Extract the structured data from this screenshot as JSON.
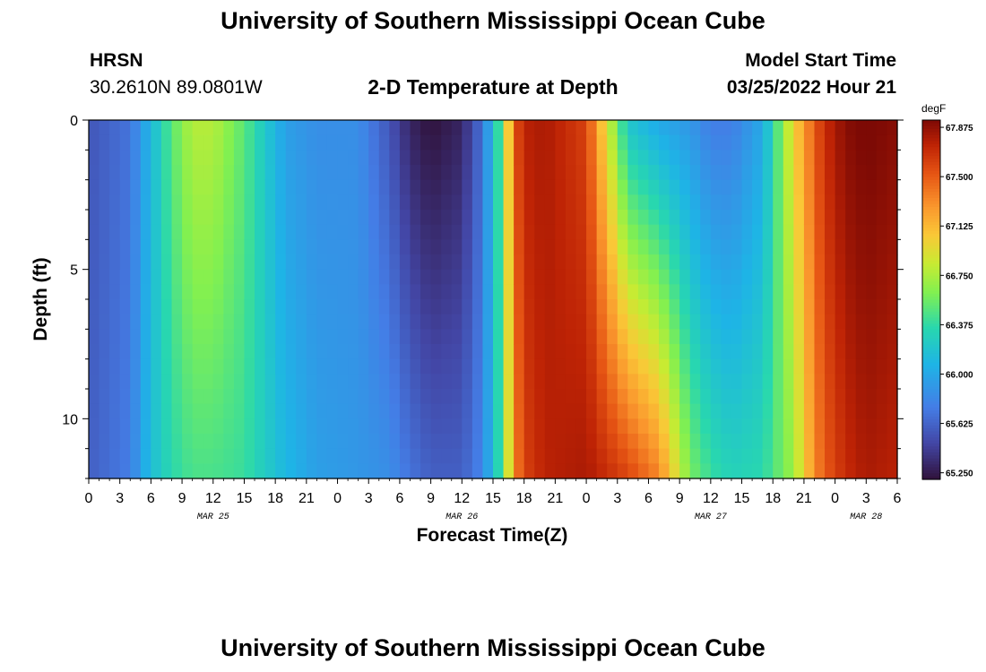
{
  "title": "University of Southern Mississippi Ocean Cube",
  "station": {
    "name": "HRSN",
    "coords": "30.2610N  89.0801W"
  },
  "subtitle": "2-D Temperature at Depth",
  "model_start": {
    "label": "Model Start Time",
    "value": "03/25/2022 Hour 21"
  },
  "bottom_title": "University of Southern Mississippi Ocean Cube",
  "chart_data": {
    "type": "heatmap",
    "title": "2-D Temperature at Depth",
    "xlabel": "Forecast Time(Z)",
    "ylabel": "Depth (ft)",
    "x_range_hours": [
      0,
      78
    ],
    "y_range_ft": [
      0,
      12
    ],
    "y_ticks": [
      0,
      5,
      10
    ],
    "x_tick_labels": [
      "0",
      "3",
      "6",
      "9",
      "12",
      "15",
      "18",
      "21",
      "0",
      "3",
      "6",
      "9",
      "12",
      "15",
      "18",
      "21",
      "0",
      "3",
      "6",
      "9",
      "12",
      "15",
      "18",
      "21",
      "0",
      "3",
      "6"
    ],
    "date_labels": [
      {
        "label": "MAR 25",
        "hour": 12
      },
      {
        "label": "MAR 26",
        "hour": 36
      },
      {
        "label": "MAR 27",
        "hour": 60
      },
      {
        "label": "MAR 28",
        "hour": 75
      }
    ],
    "colorbar": {
      "unit": "degF",
      "min": 65.2,
      "max": 67.93,
      "ticks": [
        "67.875",
        "67.500",
        "67.125",
        "66.750",
        "66.375",
        "66.000",
        "65.625",
        "65.250"
      ]
    },
    "temperature_profiles": {
      "hours": [
        0,
        4,
        6,
        8,
        10,
        12,
        15,
        19,
        22,
        26,
        29,
        31,
        33,
        36,
        38,
        40,
        41,
        42,
        44,
        48,
        52,
        55,
        58,
        60,
        62,
        65,
        68,
        70,
        71,
        73,
        75,
        78
      ],
      "surface": [
        65.55,
        65.7,
        66.1,
        66.5,
        66.78,
        66.78,
        66.5,
        65.95,
        65.85,
        65.85,
        65.55,
        65.3,
        65.2,
        65.3,
        65.7,
        66.6,
        67.5,
        67.75,
        67.8,
        67.6,
        66.2,
        66.0,
        65.9,
        65.75,
        65.75,
        66.0,
        67.0,
        67.5,
        67.7,
        67.9,
        67.95,
        67.9
      ],
      "bottom": [
        65.6,
        65.75,
        66.15,
        66.35,
        66.45,
        66.45,
        66.4,
        66.1,
        65.95,
        65.9,
        65.85,
        65.7,
        65.6,
        65.6,
        65.8,
        66.5,
        67.3,
        67.6,
        67.75,
        67.8,
        67.6,
        67.35,
        66.6,
        66.4,
        66.3,
        66.35,
        66.7,
        67.3,
        67.5,
        67.7,
        67.8,
        67.75
      ]
    }
  }
}
